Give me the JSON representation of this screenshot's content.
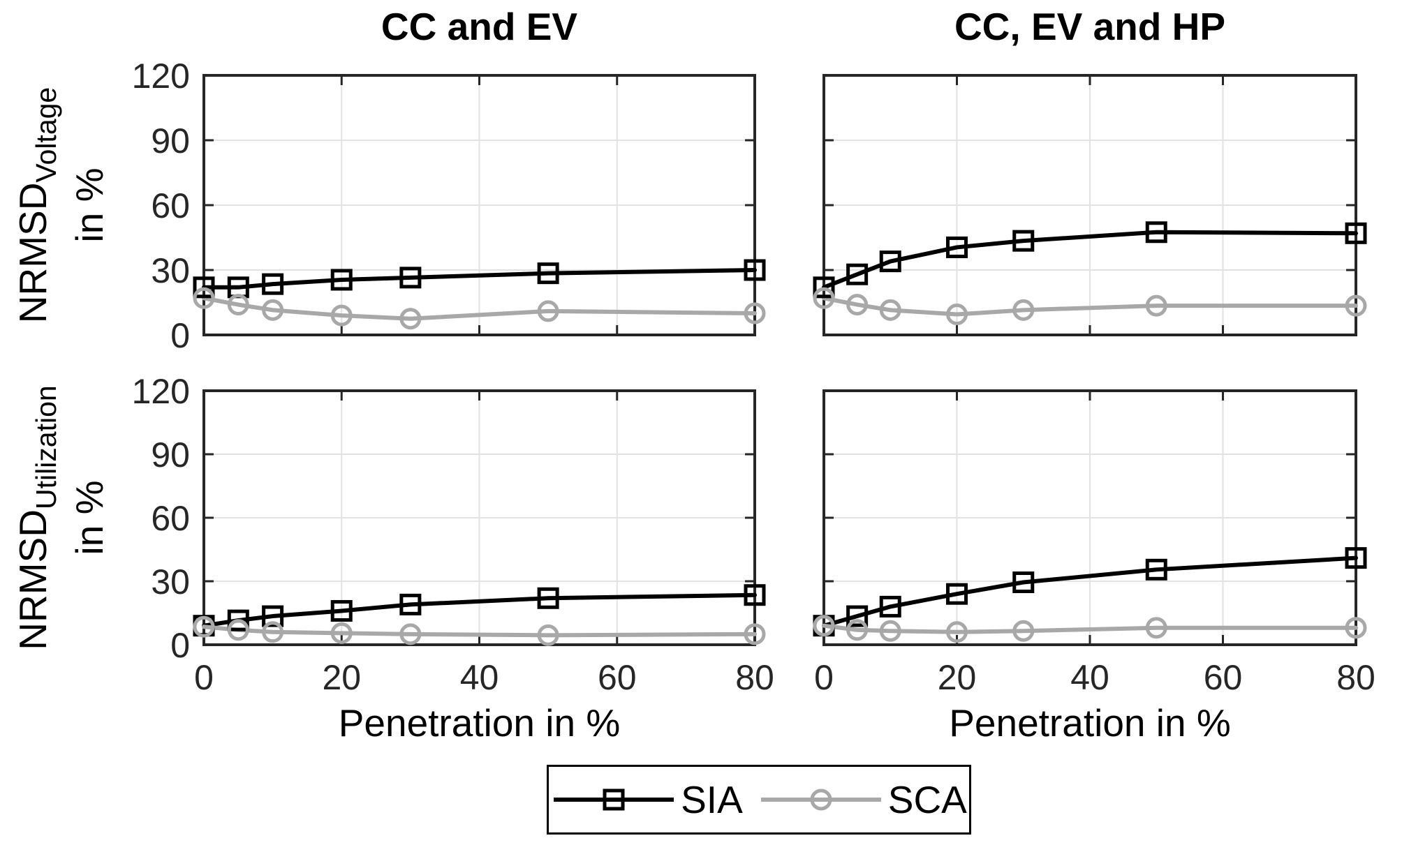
{
  "figure": {
    "background": "#ffffff",
    "styles": {
      "axis_color": "#262626",
      "grid_color": "#e2e2e2",
      "tick_label_color": "#262626",
      "sia_color": "#000000",
      "sca_color": "#a8a8a8"
    },
    "legend": {
      "entries": [
        {
          "label": "SIA",
          "color": "#000000",
          "marker": "square"
        },
        {
          "label": "SCA",
          "color": "#a8a8a8",
          "marker": "circle"
        }
      ],
      "position": "bottom-center",
      "border": true
    }
  },
  "chart_data": [
    {
      "id": "voltage-cc-ev",
      "type": "line",
      "title": "CC and EV",
      "ylabel": "NRMSD_Voltage in %",
      "ylabel_parts": {
        "prefix": "NRMSD",
        "sub": "Voltage",
        "unit": "in %"
      },
      "xlabel": "",
      "x": [
        0,
        5,
        10,
        20,
        30,
        50,
        80
      ],
      "series": [
        {
          "name": "SIA",
          "marker": "square",
          "color": "#000000",
          "values": [
            22,
            22,
            23.5,
            25.5,
            26.5,
            28.5,
            30
          ]
        },
        {
          "name": "SCA",
          "marker": "circle",
          "color": "#a8a8a8",
          "values": [
            17,
            14,
            11.5,
            9,
            7.5,
            11,
            10
          ]
        }
      ],
      "xlim": [
        0,
        80
      ],
      "ylim": [
        0,
        120
      ],
      "x_ticks": [
        0,
        20,
        40,
        60,
        80
      ],
      "y_ticks": [
        0,
        30,
        60,
        90,
        120
      ],
      "show_x_ticklabels": false,
      "show_y_ticklabels": true,
      "grid": true
    },
    {
      "id": "voltage-cc-ev-hp",
      "type": "line",
      "title": "CC, EV and HP",
      "ylabel": "NRMSD_Voltage in %",
      "xlabel": "",
      "x": [
        0,
        5,
        10,
        20,
        30,
        50,
        80
      ],
      "series": [
        {
          "name": "SIA",
          "marker": "square",
          "color": "#000000",
          "values": [
            22,
            28,
            34,
            40.5,
            43.5,
            47.5,
            47
          ]
        },
        {
          "name": "SCA",
          "marker": "circle",
          "color": "#a8a8a8",
          "values": [
            17,
            14,
            11.5,
            9.5,
            11.5,
            13.5,
            13.5
          ]
        }
      ],
      "xlim": [
        0,
        80
      ],
      "ylim": [
        0,
        120
      ],
      "x_ticks": [
        0,
        20,
        40,
        60,
        80
      ],
      "y_ticks": [
        0,
        30,
        60,
        90,
        120
      ],
      "show_x_ticklabels": false,
      "show_y_ticklabels": false,
      "grid": true
    },
    {
      "id": "utilization-cc-ev",
      "type": "line",
      "title": "",
      "ylabel": "NRMSD_Utilization in %",
      "ylabel_parts": {
        "prefix": "NRMSD",
        "sub": "Utilization",
        "unit": "in %"
      },
      "xlabel": "Penetration in %",
      "x": [
        0,
        5,
        10,
        20,
        30,
        50,
        80
      ],
      "series": [
        {
          "name": "SIA",
          "marker": "square",
          "color": "#000000",
          "values": [
            9,
            11.5,
            13.5,
            16,
            19,
            22,
            23.5
          ]
        },
        {
          "name": "SCA",
          "marker": "circle",
          "color": "#a8a8a8",
          "values": [
            8.5,
            7,
            6,
            5.5,
            5,
            4.5,
            5
          ]
        }
      ],
      "xlim": [
        0,
        80
      ],
      "ylim": [
        0,
        120
      ],
      "x_ticks": [
        0,
        20,
        40,
        60,
        80
      ],
      "y_ticks": [
        0,
        30,
        60,
        90,
        120
      ],
      "show_x_ticklabels": true,
      "show_y_ticklabels": true,
      "grid": true
    },
    {
      "id": "utilization-cc-ev-hp",
      "type": "line",
      "title": "",
      "ylabel": "NRMSD_Utilization in %",
      "xlabel": "Penetration in %",
      "x": [
        0,
        5,
        10,
        20,
        30,
        50,
        80
      ],
      "series": [
        {
          "name": "SIA",
          "marker": "square",
          "color": "#000000",
          "values": [
            9,
            13.5,
            18,
            24,
            29.5,
            35.5,
            41
          ]
        },
        {
          "name": "SCA",
          "marker": "circle",
          "color": "#a8a8a8",
          "values": [
            9,
            7,
            6.5,
            6,
            6.5,
            8,
            8
          ]
        }
      ],
      "xlim": [
        0,
        80
      ],
      "ylim": [
        0,
        120
      ],
      "x_ticks": [
        0,
        20,
        40,
        60,
        80
      ],
      "y_ticks": [
        0,
        30,
        60,
        90,
        120
      ],
      "show_x_ticklabels": true,
      "show_y_ticklabels": false,
      "grid": true
    }
  ]
}
